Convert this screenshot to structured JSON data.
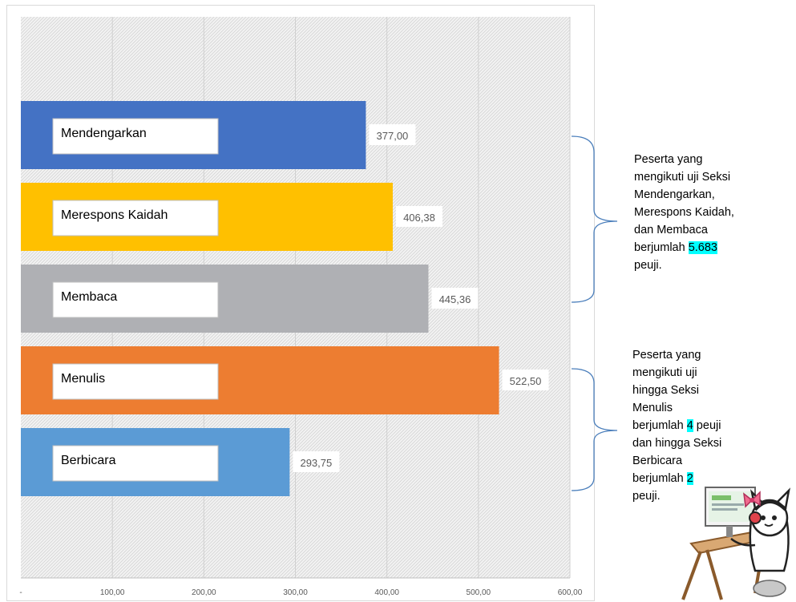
{
  "chart_data": {
    "type": "bar",
    "orientation": "horizontal",
    "categories": [
      "Mendengarkan",
      "Merespons Kaidah",
      "Membaca",
      "Menulis",
      "Berbicara"
    ],
    "values": [
      377.0,
      406.38,
      445.36,
      522.5,
      293.75
    ],
    "value_labels": [
      "377,00",
      "406,38",
      "445,36",
      "522,50",
      "293,75"
    ],
    "colors": [
      "#4472c4",
      "#ffc000",
      "#afb0b4",
      "#ed7d31",
      "#5b9bd5"
    ],
    "xlim": [
      0,
      600
    ],
    "x_ticks": [
      {
        "value": 0,
        "label": "-"
      },
      {
        "value": 100,
        "label": "100,00"
      },
      {
        "value": 200,
        "label": "200,00"
      },
      {
        "value": 300,
        "label": "300,00"
      },
      {
        "value": 400,
        "label": "400,00"
      },
      {
        "value": 500,
        "label": "500,00"
      },
      {
        "value": 600,
        "label": "600,00"
      }
    ],
    "grid": true,
    "title": "",
    "xlabel": "",
    "ylabel": ""
  },
  "notes": [
    {
      "lines": [
        [
          {
            "t": "Peserta yang"
          }
        ],
        [
          {
            "t": "mengikuti uji Seksi"
          }
        ],
        [
          {
            "t": "Mendengarkan,"
          }
        ],
        [
          {
            "t": "Merespons Kaidah,"
          }
        ],
        [
          {
            "t": "dan Membaca"
          }
        ],
        [
          {
            "t": "berjumlah "
          },
          {
            "t": "5.683",
            "hl": true
          }
        ],
        [
          {
            "t": "peuji."
          }
        ]
      ]
    },
    {
      "lines": [
        [
          {
            "t": "Peserta yang"
          }
        ],
        [
          {
            "t": "mengikuti uji"
          }
        ],
        [
          {
            "t": "hingga Seksi"
          }
        ],
        [
          {
            "t": "Menulis"
          }
        ],
        [
          {
            "t": "berjumlah "
          },
          {
            "t": "4",
            "hl": true
          },
          {
            "t": " peuji"
          }
        ],
        [
          {
            "t": "dan hingga Seksi"
          }
        ],
        [
          {
            "t": "Berbicara"
          }
        ],
        [
          {
            "t": "berjumlah "
          },
          {
            "t": "2",
            "hl": true
          }
        ],
        [
          {
            "t": "peuji."
          }
        ]
      ]
    }
  ],
  "highlight_color": "#00ffff",
  "bracket_color": "#4a7ebb"
}
